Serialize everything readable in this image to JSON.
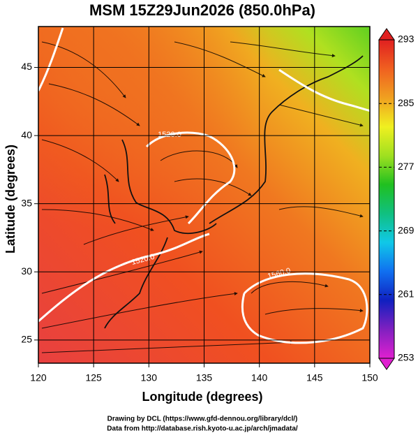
{
  "chart_data": {
    "type": "map",
    "title": "MSM 15Z29Jun2026 (850.0hPa)",
    "xlabel": "Longitude (degrees)",
    "ylabel": "Latitude  (degrees)",
    "xlim": [
      120,
      150
    ],
    "xticks": [
      120,
      125,
      130,
      135,
      140,
      145,
      150
    ],
    "ylim": [
      23.3,
      48
    ],
    "yticks": [
      25,
      30,
      35,
      40,
      45
    ],
    "grid": true,
    "contour_labels": [
      "1520.0",
      "1520.0",
      "1560.0"
    ],
    "colorbar": {
      "lim": [
        253,
        293
      ],
      "ticks": [
        253,
        261,
        269,
        277,
        285,
        293
      ],
      "colors": [
        "#e020d0",
        "#8020c0",
        "#1020c0",
        "#1070f0",
        "#10c8e8",
        "#10c080",
        "#20c020",
        "#a0e020",
        "#f0f020",
        "#f0a020",
        "#f06020",
        "#e02020"
      ]
    }
  },
  "footer": [
    "Drawing by DCL (https://www.gfd-dennou.org/library/dcl/)",
    "Data from http://database.rish.kyoto-u.ac.jp/arch/jmadata/"
  ]
}
